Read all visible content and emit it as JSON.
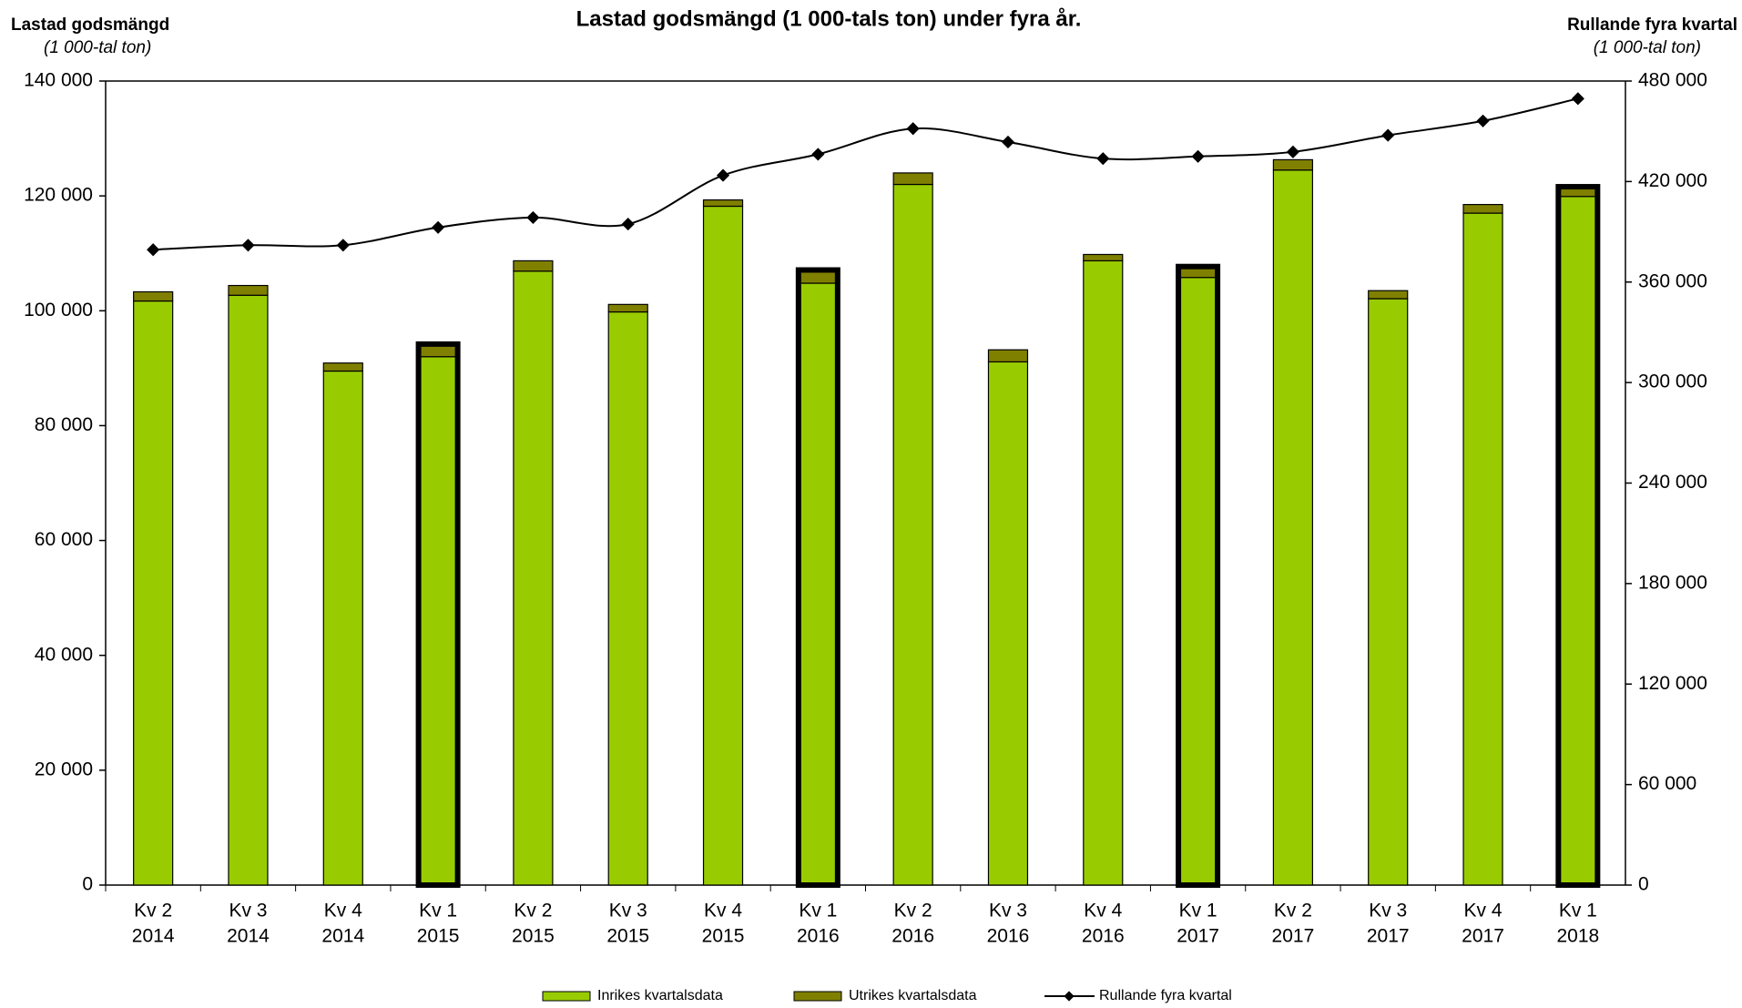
{
  "chart_data": {
    "type": "bar",
    "title": "Lastad godsmängd (1 000-tals ton) under fyra år.",
    "y_axis_label": "Lastad godsmängd",
    "y_axis_sublabel": "(1 000-tal ton)",
    "y2_axis_label": "Rullande fyra kvartal",
    "y2_axis_sublabel": "(1 000-tal ton)",
    "categories": [
      [
        "Kv 2",
        "2014"
      ],
      [
        "Kv 3",
        "2014"
      ],
      [
        "Kv 4",
        "2014"
      ],
      [
        "Kv 1",
        "2015"
      ],
      [
        "Kv 2",
        "2015"
      ],
      [
        "Kv 3",
        "2015"
      ],
      [
        "Kv 4",
        "2015"
      ],
      [
        "Kv 1",
        "2016"
      ],
      [
        "Kv 2",
        "2016"
      ],
      [
        "Kv 3",
        "2016"
      ],
      [
        "Kv 4",
        "2016"
      ],
      [
        "Kv 1",
        "2017"
      ],
      [
        "Kv 2",
        "2017"
      ],
      [
        "Kv 3",
        "2017"
      ],
      [
        "Kv 4",
        "2017"
      ],
      [
        "Kv 1",
        "2018"
      ]
    ],
    "series": [
      {
        "name": "Inrikes kvartalsdata",
        "color": "#99cc00",
        "values": [
          101700,
          102700,
          89500,
          92000,
          106900,
          99800,
          118200,
          104800,
          122000,
          91100,
          108700,
          105800,
          124500,
          102100,
          117000,
          119900
        ]
      },
      {
        "name": "Utrikes kvartalsdata",
        "color": "#808000",
        "values": [
          1600,
          1700,
          1400,
          2200,
          1800,
          1300,
          1100,
          2300,
          2000,
          2100,
          1100,
          1900,
          1800,
          1400,
          1500,
          1700
        ]
      },
      {
        "name": "Rullande fyra kvartal",
        "color": "#000000",
        "axis": "y2",
        "type": "line",
        "values": [
          379300,
          382000,
          382000,
          392600,
          398500,
          394600,
          423700,
          436300,
          451600,
          443600,
          433700,
          435000,
          437700,
          447600,
          456200,
          469500
        ]
      }
    ],
    "ylim": [
      0,
      140000
    ],
    "yticks": [
      {
        "value": 0,
        "label": "0"
      },
      {
        "value": 20000,
        "label": "20 000"
      },
      {
        "value": 40000,
        "label": "40 000"
      },
      {
        "value": 60000,
        "label": "60 000"
      },
      {
        "value": 80000,
        "label": "80 000"
      },
      {
        "value": 100000,
        "label": "100 000"
      },
      {
        "value": 120000,
        "label": "120 000"
      },
      {
        "value": 140000,
        "label": "140 000"
      }
    ],
    "y2lim": [
      0,
      480000
    ],
    "y2ticks": [
      {
        "value": 0,
        "label": "0"
      },
      {
        "value": 60000,
        "label": "60 000"
      },
      {
        "value": 120000,
        "label": "120 000"
      },
      {
        "value": 180000,
        "label": "180 000"
      },
      {
        "value": 240000,
        "label": "240 000"
      },
      {
        "value": 300000,
        "label": "300 000"
      },
      {
        "value": 360000,
        "label": "360 000"
      },
      {
        "value": 420000,
        "label": "420 000"
      },
      {
        "value": 480000,
        "label": "480 000"
      }
    ],
    "grid": false,
    "legend": "bottom"
  }
}
